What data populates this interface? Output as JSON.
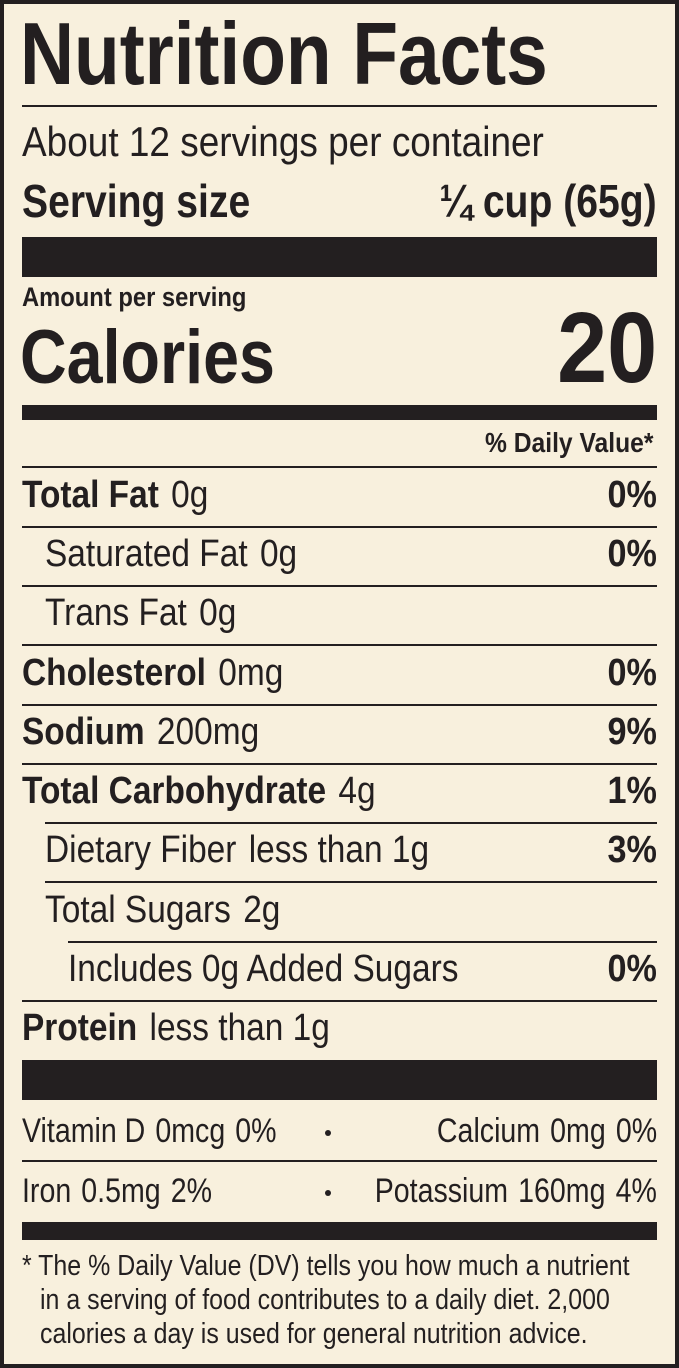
{
  "header": {
    "title": "Nutrition Facts",
    "servings": "About 12 servings per container",
    "serving_size_label": "Serving size",
    "serving_size": "¼ cup (65g)"
  },
  "calories": {
    "amount_label": "Amount per serving",
    "label": "Calories",
    "value": "20"
  },
  "daily_value_header": "% Daily Value*",
  "nutrients": [
    {
      "name": "Total Fat",
      "amount": "0g",
      "dv": "0%"
    },
    {
      "name": "Saturated Fat",
      "amount": "0g",
      "dv": "0%"
    },
    {
      "name": "Trans Fat",
      "amount": "0g"
    },
    {
      "name": "Cholesterol",
      "amount": "0mg",
      "dv": "0%"
    },
    {
      "name": "Sodium",
      "amount": "200mg",
      "dv": "9%"
    },
    {
      "name": "Total Carbohydrate",
      "amount": "4g",
      "dv": "1%"
    },
    {
      "name": "Dietary Fiber",
      "amount": "less than 1g",
      "dv": "3%"
    },
    {
      "name": "Total Sugars",
      "amount": "2g"
    },
    {
      "name": "Includes 0g Added Sugars",
      "dv": "0%"
    },
    {
      "name": "Protein",
      "amount": "less than 1g"
    }
  ],
  "vitamins": [
    [
      {
        "name": "Vitamin D",
        "amount": "0mcg",
        "dv": "0%"
      },
      {
        "name": "Calcium",
        "amount": "0mg",
        "dv": "0%"
      }
    ],
    [
      {
        "name": "Iron",
        "amount": "0.5mg",
        "dv": "2%"
      },
      {
        "name": "Potassium",
        "amount": "160mg",
        "dv": "4%"
      }
    ]
  ],
  "footnote": [
    "* The % Daily Value (DV) tells you how much a nutrient",
    "in a serving of food contributes to a daily diet. 2,000",
    "calories a day is used for general nutrition advice."
  ]
}
